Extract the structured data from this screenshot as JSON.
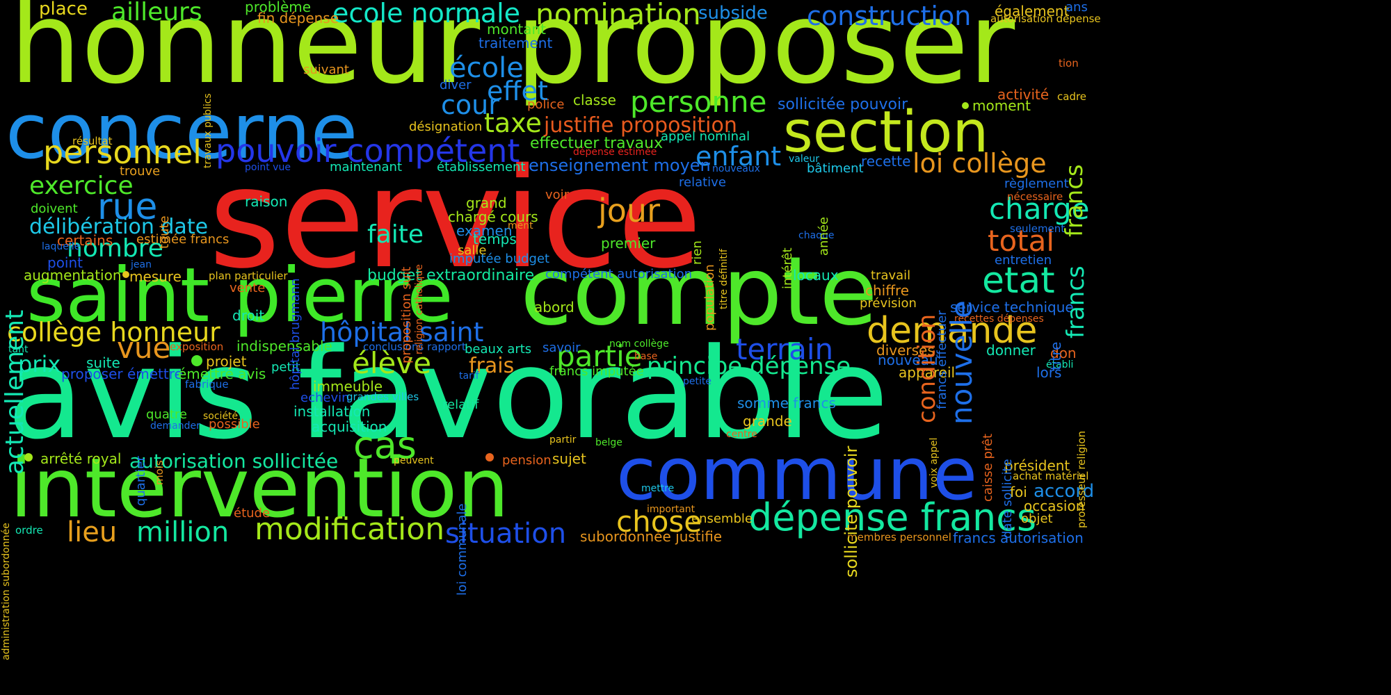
{
  "words": [
    {
      "text": "service",
      "color": "#e8231e"
    },
    {
      "text": "avis favorable",
      "color": "#14e88f"
    },
    {
      "text": "honneur proposer",
      "color": "#a4e81a"
    },
    {
      "text": "compte",
      "color": "#4ee82a"
    },
    {
      "text": "concerne",
      "color": "#1e8fe8"
    },
    {
      "text": "saint pierre",
      "color": "#3fe828"
    },
    {
      "text": "intervention",
      "color": "#4ee82a"
    },
    {
      "text": "commune",
      "color": "#1e4fe8"
    },
    {
      "text": "section",
      "color": "#c4e81e"
    },
    {
      "text": "dépense francs",
      "color": "#14e8a0"
    },
    {
      "text": "demande",
      "color": "#e8c41e"
    },
    {
      "text": "pouvoir compétent",
      "color": "#2436e8"
    },
    {
      "text": "personnel",
      "color": "#e8d81e"
    },
    {
      "text": "collège honneur",
      "color": "#e8d81e"
    },
    {
      "text": "hôpital saint",
      "color": "#1e6fe8"
    },
    {
      "text": "actuellement",
      "color": "#14e8b4"
    },
    {
      "text": "nombre",
      "color": "#14e8b4"
    },
    {
      "text": "exercice",
      "color": "#4ee82a"
    },
    {
      "text": "rue",
      "color": "#1e8fe8"
    },
    {
      "text": "délibération date",
      "color": "#1ec8e8"
    },
    {
      "text": "nomination",
      "color": "#a4e81a"
    },
    {
      "text": "ecole normale",
      "color": "#14e8c8"
    },
    {
      "text": "ailleurs",
      "color": "#4ee82a"
    },
    {
      "text": "construction",
      "color": "#1e6fe8"
    },
    {
      "text": "école",
      "color": "#1e8fe8"
    },
    {
      "text": "effet",
      "color": "#1e8fe8"
    },
    {
      "text": "cour",
      "color": "#1e8fe8"
    },
    {
      "text": "taxe",
      "color": "#a4e81a"
    },
    {
      "text": "personne",
      "color": "#4ee82a"
    },
    {
      "text": "justifie proposition",
      "color": "#e85a1e"
    },
    {
      "text": "enfant",
      "color": "#1e8fe8"
    },
    {
      "text": "loi collège",
      "color": "#e8961e"
    },
    {
      "text": "jour",
      "color": "#e8a01e"
    },
    {
      "text": "charge",
      "color": "#14e8b4"
    },
    {
      "text": "total",
      "color": "#e8641e"
    },
    {
      "text": "etat",
      "color": "#14e8a0"
    },
    {
      "text": "nouvelle",
      "color": "#1e6fe8"
    },
    {
      "text": "condition",
      "color": "#e8641e"
    },
    {
      "text": "terrain",
      "color": "#1e4fe8"
    },
    {
      "text": "partie",
      "color": "#4ee82a"
    },
    {
      "text": "principe dépense",
      "color": "#14e88f"
    },
    {
      "text": "élève",
      "color": "#a4e81a"
    },
    {
      "text": "cas",
      "color": "#4ee82a"
    },
    {
      "text": "faite",
      "color": "#14e8b4"
    },
    {
      "text": "vue",
      "color": "#e8961e"
    },
    {
      "text": "prix",
      "color": "#14e8b4"
    },
    {
      "text": "lieu",
      "color": "#e8a01e"
    },
    {
      "text": "million",
      "color": "#14e8a0"
    },
    {
      "text": "modification",
      "color": "#a4e81a"
    },
    {
      "text": "situation",
      "color": "#1e4fe8"
    },
    {
      "text": "chose",
      "color": "#e8c41e"
    },
    {
      "text": "autorisation sollicitée",
      "color": "#14e8a0"
    },
    {
      "text": "frais",
      "color": "#e8961e"
    },
    {
      "text": "francs",
      "color": "#a4e81a"
    },
    {
      "text": "francs",
      "color": "#14e8b4"
    },
    {
      "text": "sollicite pouvoir",
      "color": "#e8d81e"
    },
    {
      "text": "enseignement moyen",
      "color": "#1e6fe8"
    },
    {
      "text": "place",
      "color": "#e8d81e"
    },
    {
      "text": "problème",
      "color": "#4ee82a"
    },
    {
      "text": "fin dépense",
      "color": "#e8961e"
    },
    {
      "text": "subside",
      "color": "#1e8fe8"
    },
    {
      "text": "également",
      "color": "#e8c41e"
    },
    {
      "text": "ans",
      "color": "#1e6fe8"
    },
    {
      "text": "autorisation dépense",
      "color": "#e8c41e"
    },
    {
      "text": "montant",
      "color": "#4ee82a"
    },
    {
      "text": "traitement",
      "color": "#1e6fe8"
    },
    {
      "text": "suivant",
      "color": "#e8961e"
    },
    {
      "text": "tion",
      "color": "#e8641e"
    },
    {
      "text": "diver",
      "color": "#1e6fe8"
    },
    {
      "text": "classe",
      "color": "#a4e81a"
    },
    {
      "text": "police",
      "color": "#e8641e"
    },
    {
      "text": "sollicitée pouvoir",
      "color": "#1e6fe8"
    },
    {
      "text": "activité",
      "color": "#e8641e"
    },
    {
      "text": "cadre",
      "color": "#e8c41e"
    },
    {
      "text": "moment",
      "color": "#a4e81a"
    },
    {
      "text": "désignation",
      "color": "#e8c41e"
    },
    {
      "text": "résultat",
      "color": "#e8c41e"
    },
    {
      "text": "effectuer travaux",
      "color": "#4ee82a"
    },
    {
      "text": "appel nominal",
      "color": "#14e8b4"
    },
    {
      "text": "dépense estimée",
      "color": "#e8231e"
    },
    {
      "text": "valeur",
      "color": "#1ec8e8"
    },
    {
      "text": "bâtiment",
      "color": "#1ec8e8"
    },
    {
      "text": "recette",
      "color": "#1e6fe8"
    },
    {
      "text": "point vue",
      "color": "#1e4fe8"
    },
    {
      "text": "trouve",
      "color": "#e8a01e"
    },
    {
      "text": "maintenant",
      "color": "#14e8b4"
    },
    {
      "text": "établissement",
      "color": "#14e8b4"
    },
    {
      "text": "nouveaux",
      "color": "#1e6fe8"
    },
    {
      "text": "relative",
      "color": "#1e6fe8"
    },
    {
      "text": "règlement",
      "color": "#1e6fe8"
    },
    {
      "text": "nécessaire",
      "color": "#e8641e"
    },
    {
      "text": "seulement",
      "color": "#1e6fe8"
    },
    {
      "text": "entretien",
      "color": "#1e6fe8"
    },
    {
      "text": "travail",
      "color": "#e8c41e"
    },
    {
      "text": "chiffre",
      "color": "#e8961e"
    },
    {
      "text": "prévision",
      "color": "#e8c41e"
    },
    {
      "text": "service technique",
      "color": "#1e6fe8"
    },
    {
      "text": "recettes dépenses",
      "color": "#e8641e"
    },
    {
      "text": "doivent",
      "color": "#4ee82a"
    },
    {
      "text": "raison",
      "color": "#14e8b4"
    },
    {
      "text": "grand",
      "color": "#a4e81a"
    },
    {
      "text": "voir",
      "color": "#e8641e"
    },
    {
      "text": "chargé cours",
      "color": "#a4e81a"
    },
    {
      "text": "examen",
      "color": "#1e8fe8"
    },
    {
      "text": "ment",
      "color": "#e8961e"
    },
    {
      "text": "temps",
      "color": "#14e8b4"
    },
    {
      "text": "salle",
      "color": "#e8c41e"
    },
    {
      "text": "premier",
      "color": "#4ee82a"
    },
    {
      "text": "imputée budget",
      "color": "#1e8fe8"
    },
    {
      "text": "chaque",
      "color": "#1e6fe8"
    },
    {
      "text": "certains",
      "color": "#e8641e"
    },
    {
      "text": "estimée francs",
      "color": "#e8961e"
    },
    {
      "text": "laquelle",
      "color": "#1e6fe8"
    },
    {
      "text": "point",
      "color": "#1e4fe8"
    },
    {
      "text": "jean",
      "color": "#1e6fe8"
    },
    {
      "text": "augmentation",
      "color": "#a4e81a"
    },
    {
      "text": "mesure",
      "color": "#e8c41e"
    },
    {
      "text": "plan particulier",
      "color": "#e8c41e"
    },
    {
      "text": "budget extraordinaire",
      "color": "#14e8a0"
    },
    {
      "text": "compétent autorisation",
      "color": "#1e6fe8"
    },
    {
      "text": "locaux",
      "color": "#14e8b4"
    },
    {
      "text": "vente",
      "color": "#e8641e"
    },
    {
      "text": "droit",
      "color": "#14e8b4"
    },
    {
      "text": "abord",
      "color": "#a4e81a"
    },
    {
      "text": "exposition",
      "color": "#e8641e"
    },
    {
      "text": "indispensable",
      "color": "#4ee82a"
    },
    {
      "text": "conclusions rapport",
      "color": "#1e6fe8"
    },
    {
      "text": "beaux arts",
      "color": "#14e8b4"
    },
    {
      "text": "savoir",
      "color": "#1e6fe8"
    },
    {
      "text": "nom collège",
      "color": "#4ee82a"
    },
    {
      "text": "base",
      "color": "#e8641e"
    },
    {
      "text": "diverses",
      "color": "#e8961e"
    },
    {
      "text": "nouveau",
      "color": "#1e6fe8"
    },
    {
      "text": "donner",
      "color": "#14e8b4"
    },
    {
      "text": "don",
      "color": "#e8641e"
    },
    {
      "text": "établi",
      "color": "#14e8b4"
    },
    {
      "text": "lors",
      "color": "#1e6fe8"
    },
    {
      "text": "tant",
      "color": "#14e8b4"
    },
    {
      "text": "suite",
      "color": "#14e8b4"
    },
    {
      "text": "projet",
      "color": "#e8c41e"
    },
    {
      "text": "proposer émettre",
      "color": "#1e4fe8"
    },
    {
      "text": "émettre avis",
      "color": "#4ee82a"
    },
    {
      "text": "petit",
      "color": "#14e8b4"
    },
    {
      "text": "francs imputée",
      "color": "#4ee82a"
    },
    {
      "text": "tarif",
      "color": "#1e6fe8"
    },
    {
      "text": "appareil",
      "color": "#e8c41e"
    },
    {
      "text": "fabrique",
      "color": "#1e6fe8"
    },
    {
      "text": "immeuble",
      "color": "#a4e81a"
    },
    {
      "text": "echevin",
      "color": "#1e4fe8"
    },
    {
      "text": "grandes villes",
      "color": "#1ec8e8"
    },
    {
      "text": "petite",
      "color": "#1e6fe8"
    },
    {
      "text": "installation",
      "color": "#14e8b4"
    },
    {
      "text": "relatif",
      "color": "#14e8a0"
    },
    {
      "text": "somme francs",
      "color": "#1e8fe8"
    },
    {
      "text": "quatre",
      "color": "#4ee82a"
    },
    {
      "text": "société",
      "color": "#e8c41e"
    },
    {
      "text": "demander",
      "color": "#1e6fe8"
    },
    {
      "text": "possible",
      "color": "#e8641e"
    },
    {
      "text": "acquisition",
      "color": "#14e8b4"
    },
    {
      "text": "grande",
      "color": "#e8c41e"
    },
    {
      "text": "centre",
      "color": "#e8641e"
    },
    {
      "text": "partir",
      "color": "#e8c41e"
    },
    {
      "text": "belge",
      "color": "#4ee82a"
    },
    {
      "text": "arrêté royal",
      "color": "#a4e81a"
    },
    {
      "text": "peuvent",
      "color": "#e8c41e"
    },
    {
      "text": "pension",
      "color": "#e8641e"
    },
    {
      "text": "sujet",
      "color": "#e8c41e"
    },
    {
      "text": "président",
      "color": "#e8c41e"
    },
    {
      "text": "achat matériel",
      "color": "#e8c41e"
    },
    {
      "text": "accord",
      "color": "#1e8fe8"
    },
    {
      "text": "mettre",
      "color": "#1ec8e8"
    },
    {
      "text": "foi",
      "color": "#e8c41e"
    },
    {
      "text": "occasion",
      "color": "#e8c41e"
    },
    {
      "text": "objet",
      "color": "#e8c41e"
    },
    {
      "text": "important",
      "color": "#e8961e"
    },
    {
      "text": "étude",
      "color": "#e8641e"
    },
    {
      "text": "ensemble",
      "color": "#e8c41e"
    },
    {
      "text": "subordonnée justifie",
      "color": "#e8961e"
    },
    {
      "text": "membres personnel",
      "color": "#e8961e"
    },
    {
      "text": "francs autorisation",
      "color": "#1e6fe8"
    },
    {
      "text": "ordre",
      "color": "#14e8b4"
    },
    {
      "text": "travaux publics",
      "color": "#e8c41e"
    },
    {
      "text": "toute",
      "color": "#e8961e"
    },
    {
      "text": "hôpital brugmann",
      "color": "#1e4fe8"
    },
    {
      "text": "proposition suit",
      "color": "#e8641e"
    },
    {
      "text": "religion catholique",
      "color": "#e8641e"
    },
    {
      "text": "titre définitif",
      "color": "#e8c41e"
    },
    {
      "text": "rien",
      "color": "#a4e81a"
    },
    {
      "text": "population",
      "color": "#e8961e"
    },
    {
      "text": "intérêt",
      "color": "#a4e81a"
    },
    {
      "text": "année",
      "color": "#a4e81a"
    },
    {
      "text": "francs effectuer",
      "color": "#1e6fe8"
    },
    {
      "text": "titre",
      "color": "#1e6fe8"
    },
    {
      "text": "caisse prêt",
      "color": "#e8641e"
    },
    {
      "text": "date sollicite",
      "color": "#1e6fe8"
    },
    {
      "text": "voix appel",
      "color": "#e8c41e"
    },
    {
      "text": "professeur religion",
      "color": "#e8c41e"
    },
    {
      "text": "quartier",
      "color": "#1e6fe8"
    },
    {
      "text": "mois",
      "color": "#e8961e"
    },
    {
      "text": "loi communale",
      "color": "#1e6fe8"
    },
    {
      "text": "administration subordonnée",
      "color": "#e8c41e"
    }
  ]
}
